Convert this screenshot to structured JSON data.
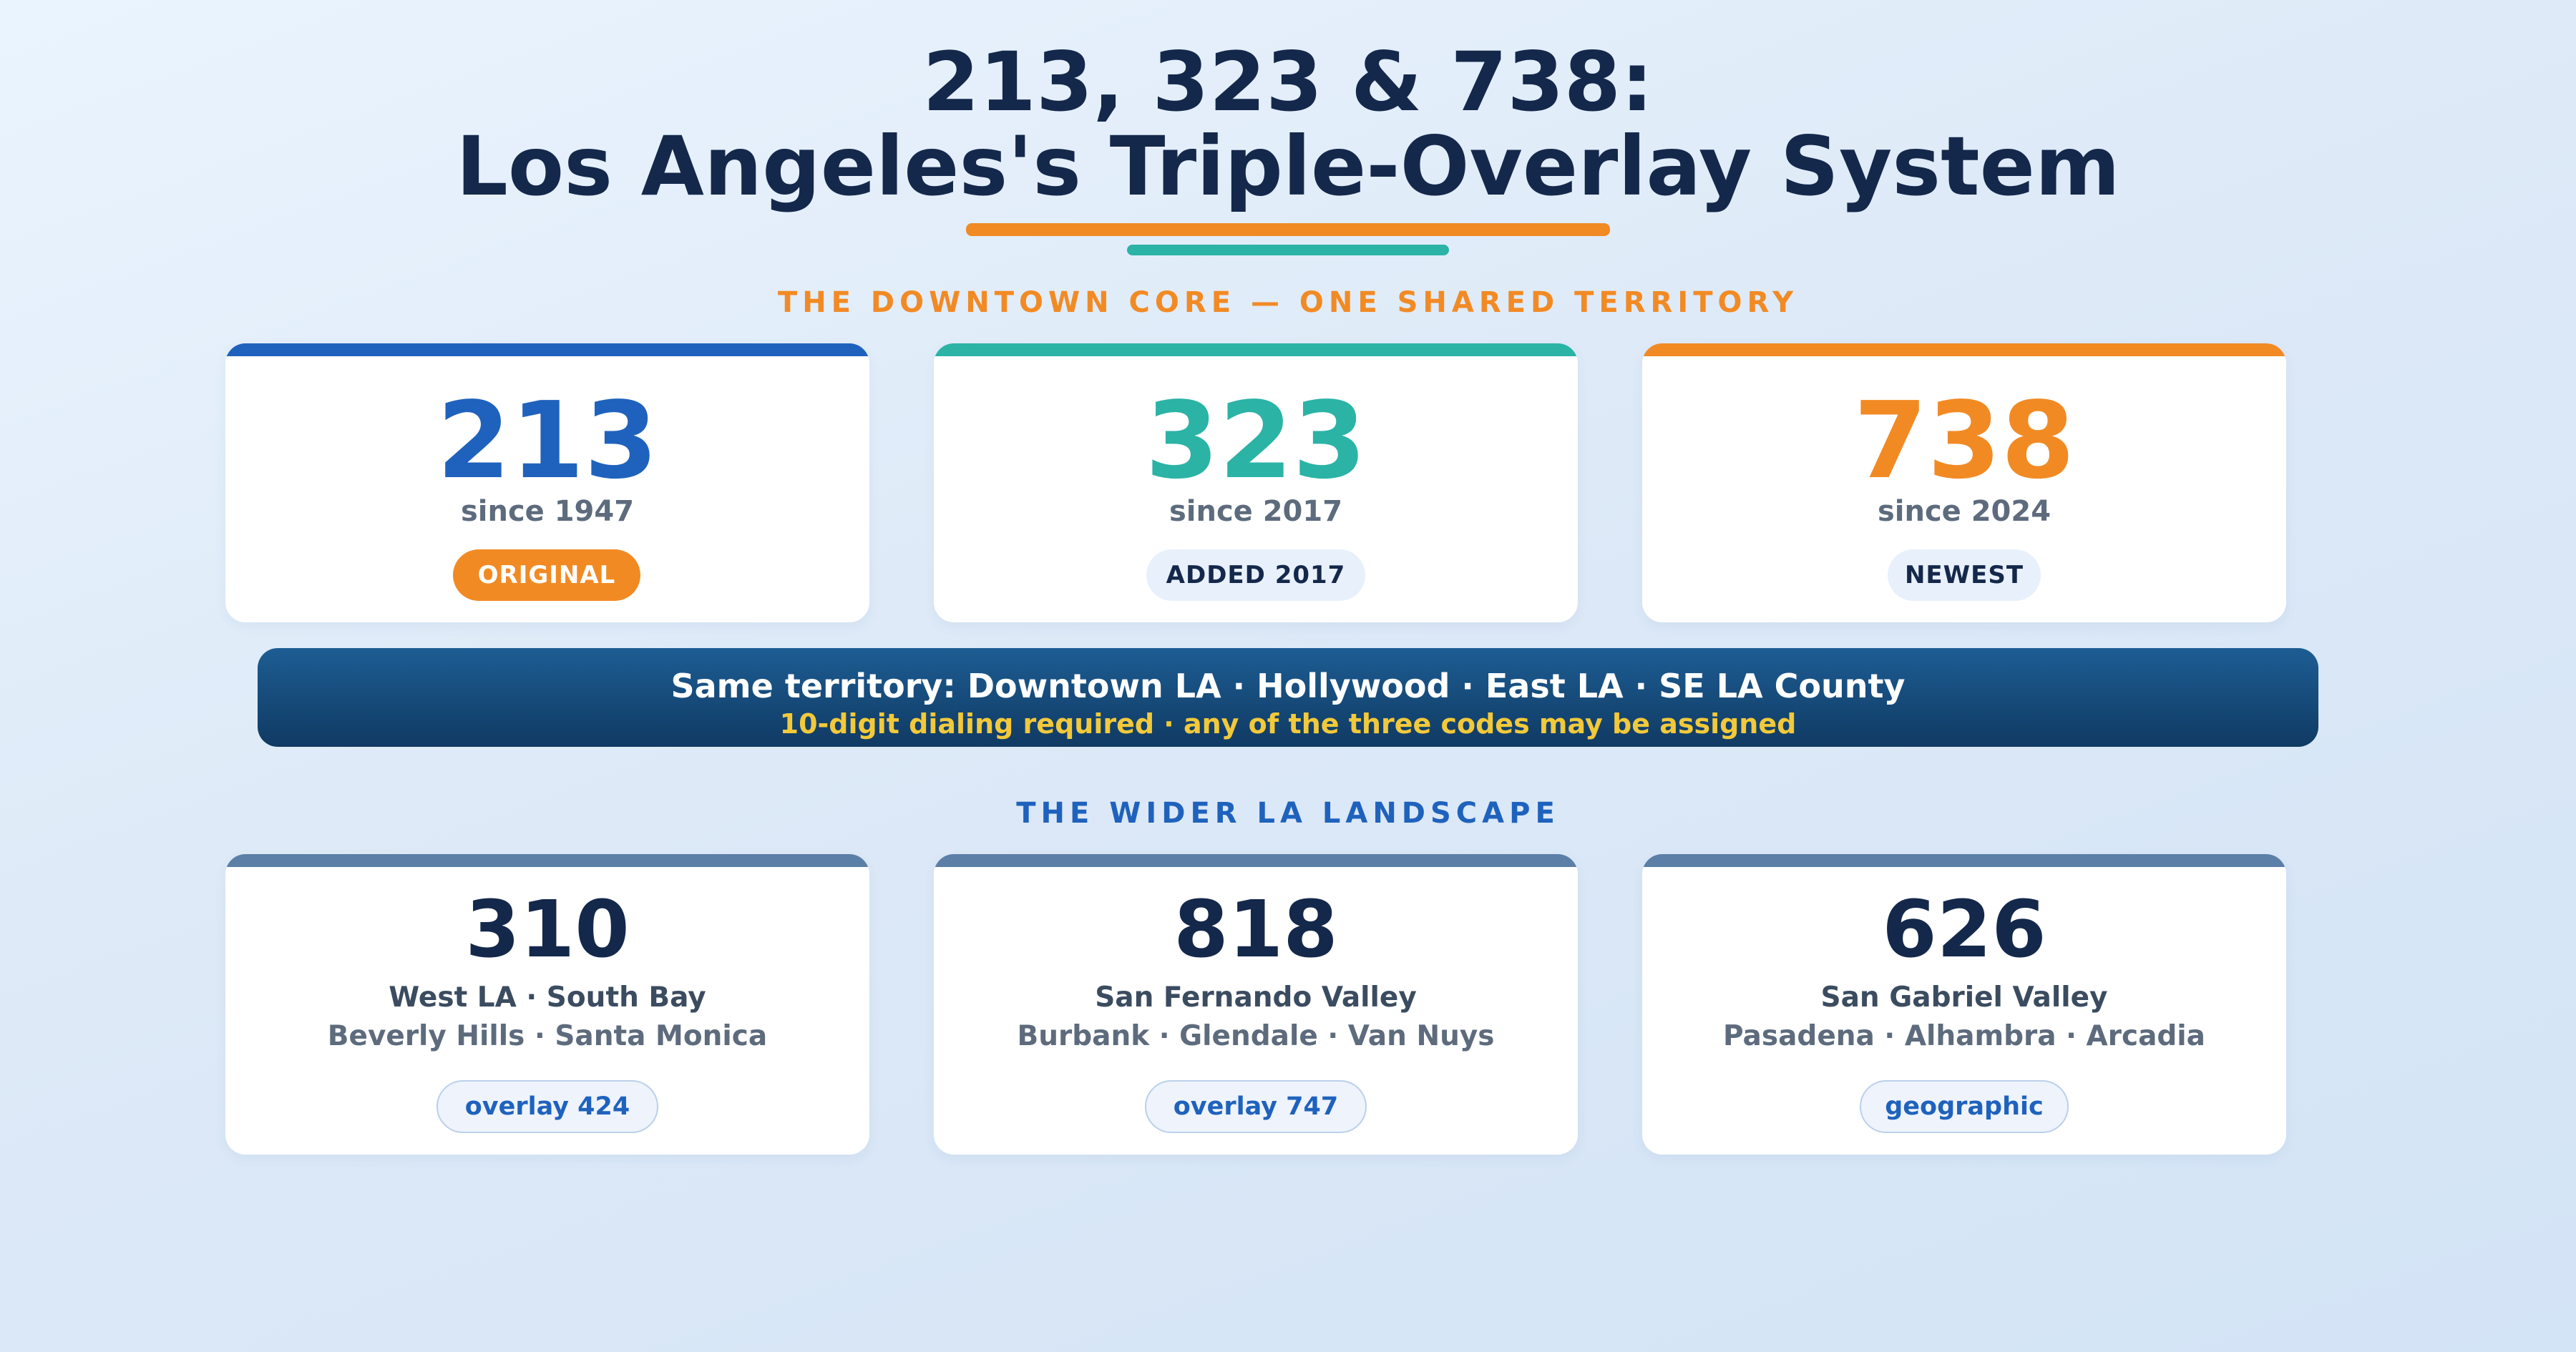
{
  "title": {
    "line1": "213, 323 & 738:",
    "line2": "Los Angeles's Triple-Overlay System"
  },
  "colors": {
    "navy": "#14284b",
    "orange": "#f28a24",
    "teal": "#2bb3a6",
    "blue": "#1f62bd",
    "slate": "#5b7fa6",
    "yellow": "#f3c93a"
  },
  "core": {
    "heading": "THE DOWNTOWN CORE — ONE SHARED TERRITORY",
    "cards": [
      {
        "code": "213",
        "since": "since 1947",
        "badge": "ORIGINAL",
        "accent": "#1f62bd"
      },
      {
        "code": "323",
        "since": "since 2017",
        "badge": "ADDED 2017",
        "accent": "#2bb3a6"
      },
      {
        "code": "738",
        "since": "since 2024",
        "badge": "NEWEST",
        "accent": "#f28a24"
      }
    ]
  },
  "banner": {
    "line1": "Same territory: Downtown LA · Hollywood · East LA · SE LA County",
    "line2": "10-digit dialing required · any of the three codes may be assigned"
  },
  "wider": {
    "heading": "THE WIDER LA LANDSCAPE",
    "cards": [
      {
        "code": "310",
        "region": "West LA · South Bay",
        "towns": "Beverly Hills · Santa Monica",
        "tag": "overlay 424"
      },
      {
        "code": "818",
        "region": "San Fernando Valley",
        "towns": "Burbank · Glendale · Van Nuys",
        "tag": "overlay 747"
      },
      {
        "code": "626",
        "region": "San Gabriel Valley",
        "towns": "Pasadena · Alhambra · Arcadia",
        "tag": "geographic"
      }
    ]
  }
}
